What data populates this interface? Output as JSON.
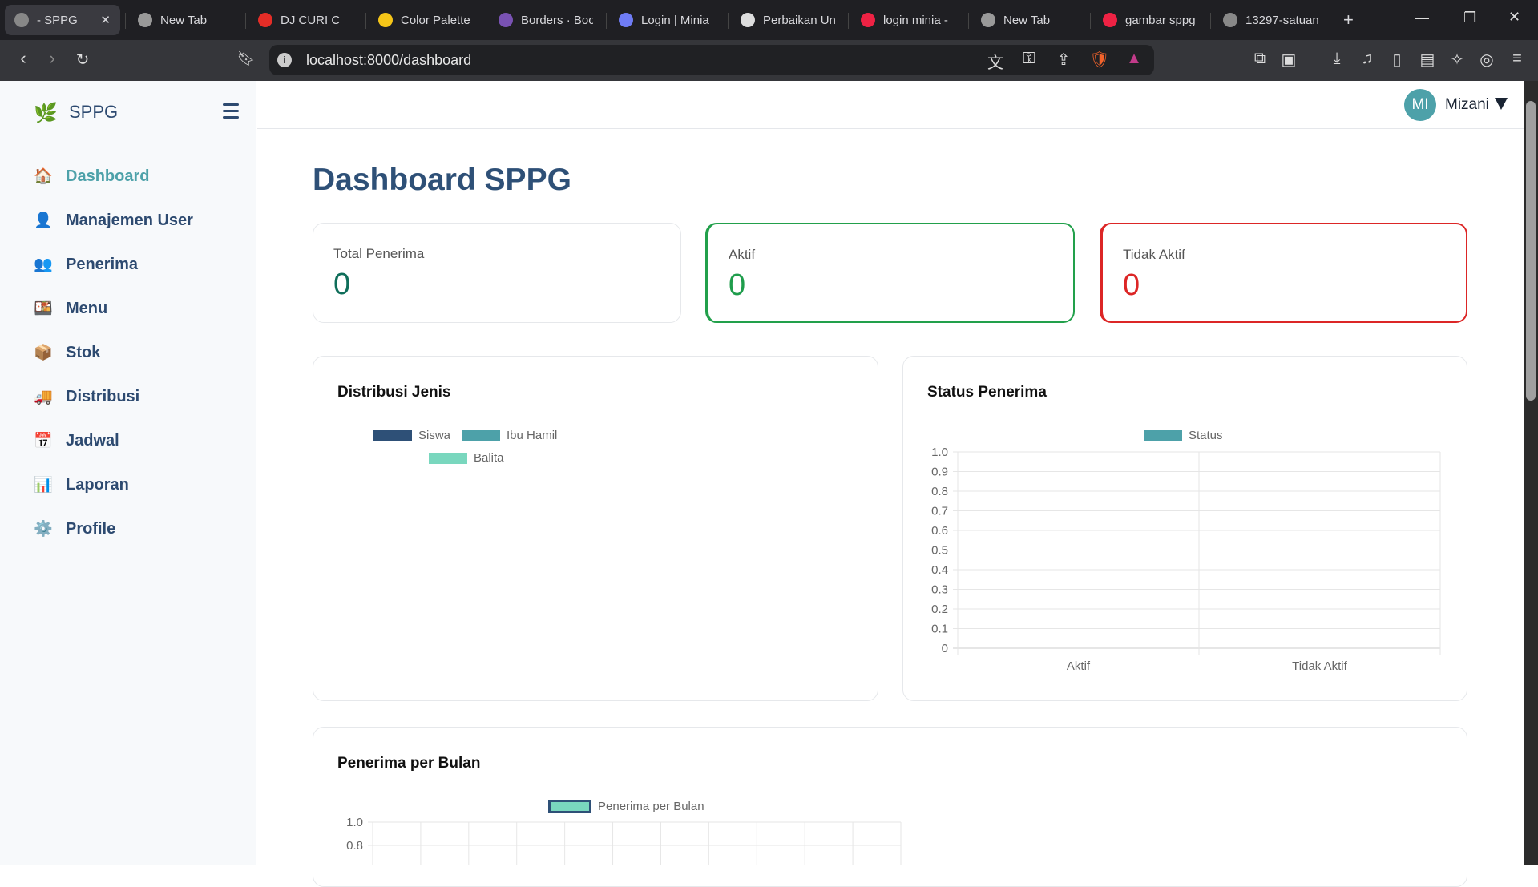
{
  "browser": {
    "tabs": [
      {
        "label": "- SPPG",
        "active": true,
        "color": "#888"
      },
      {
        "label": "New Tab",
        "color": "#999"
      },
      {
        "label": "DJ CURI C",
        "color": "#e52d27"
      },
      {
        "label": "Color Palette",
        "color": "#f5c518"
      },
      {
        "label": "Borders · Boo",
        "color": "#7952b3"
      },
      {
        "label": "Login | Minia",
        "color": "#6f7cf5"
      },
      {
        "label": "Perbaikan Un",
        "color": "#ddd"
      },
      {
        "label": "login minia -",
        "color": "#e24"
      },
      {
        "label": "New Tab",
        "color": "#999"
      },
      {
        "label": "gambar sppg",
        "color": "#e24"
      },
      {
        "label": "13297-satuan",
        "color": "#888"
      }
    ],
    "close_tab": "✕",
    "new_tab": "+",
    "url": "localhost:8000/dashboard"
  },
  "sidebar": {
    "brand": "SPPG",
    "items": [
      {
        "label": "Dashboard",
        "icon": "🏠",
        "active": true
      },
      {
        "label": "Manajemen User",
        "icon": "👤"
      },
      {
        "label": "Penerima",
        "icon": "👥"
      },
      {
        "label": "Menu",
        "icon": "🍱"
      },
      {
        "label": "Stok",
        "icon": "📦"
      },
      {
        "label": "Distribusi",
        "icon": "🚚"
      },
      {
        "label": "Jadwal",
        "icon": "📅"
      },
      {
        "label": "Laporan",
        "icon": "📊"
      },
      {
        "label": "Profile",
        "icon": "⚙️"
      }
    ]
  },
  "header": {
    "avatar_initials": "MI",
    "user_name": "Mizani"
  },
  "page": {
    "title": "Dashboard SPPG"
  },
  "stats": [
    {
      "label": "Total Penerima",
      "value": "0",
      "color": "#0f6e5a"
    },
    {
      "label": "Aktif",
      "value": "0",
      "color": "#1f9d4c",
      "border": "#22a04b"
    },
    {
      "label": "Tidak Aktif",
      "value": "0",
      "color": "#dc2626",
      "border": "#dc2626"
    }
  ],
  "chart_data": [
    {
      "type": "pie",
      "title": "Distribusi Jenis",
      "categories": [
        "Siswa",
        "Ibu Hamil",
        "Balita"
      ],
      "values": [
        0,
        0,
        0
      ],
      "colors": [
        "#2e5077",
        "#4da1a9",
        "#79d7be"
      ],
      "legend": "top"
    },
    {
      "type": "bar",
      "title": "Status Penerima",
      "categories": [
        "Aktif",
        "Tidak Aktif"
      ],
      "series": [
        {
          "name": "Status",
          "values": [
            0,
            0
          ],
          "color": "#4da1a9"
        }
      ],
      "ylim": [
        0,
        1
      ],
      "yticks": [
        "0",
        "0.1",
        "0.2",
        "0.3",
        "0.4",
        "0.5",
        "0.6",
        "0.7",
        "0.8",
        "0.9",
        "1.0"
      ],
      "grid": true,
      "legend": "top"
    },
    {
      "type": "bar",
      "title": "Penerima per Bulan",
      "series": [
        {
          "name": "Penerima per Bulan",
          "color": "#79d7be",
          "border": "#2e5077"
        }
      ],
      "ylim": [
        0,
        1
      ],
      "yticks_visible": [
        "1.0",
        "0.8"
      ],
      "grid": true,
      "legend": "top"
    }
  ]
}
